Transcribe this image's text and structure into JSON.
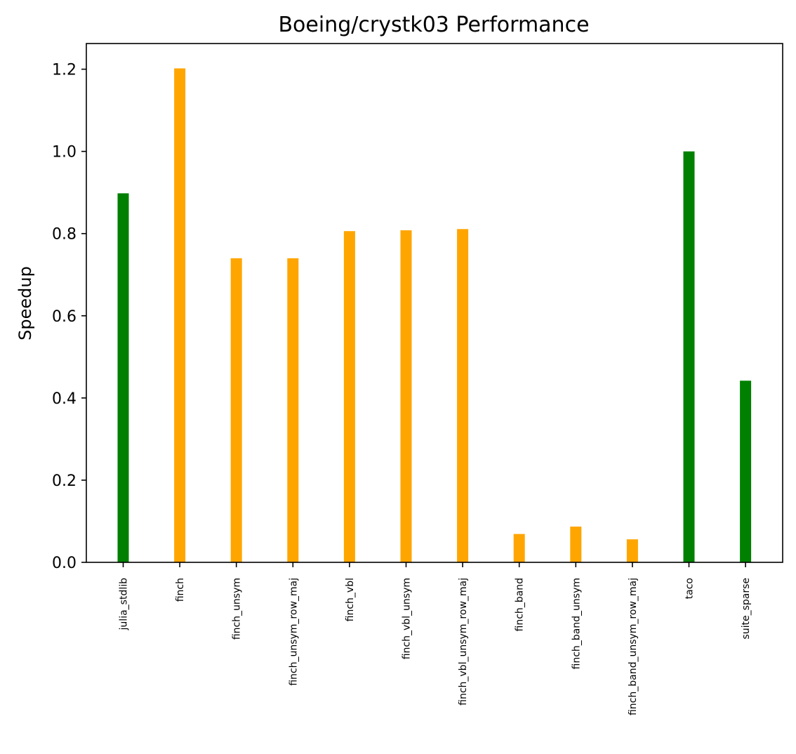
{
  "chart_data": {
    "type": "bar",
    "title": "Boeing/crystk03 Performance",
    "xlabel": "",
    "ylabel": "Speedup",
    "ylim": [
      0,
      1.2625
    ],
    "yticks": [
      "0.0",
      "0.2",
      "0.4",
      "0.6",
      "0.8",
      "1.0",
      "1.2"
    ],
    "categories": [
      "julia_stdlib",
      "finch",
      "finch_unsym",
      "finch_unsym_row_maj",
      "finch_vbl",
      "finch_vbl_unsym",
      "finch_vbl_unsym_row_maj",
      "finch_band",
      "finch_band_unsym",
      "finch_band_unsym_row_maj",
      "taco",
      "suite_sparse"
    ],
    "values": [
      0.898,
      1.202,
      0.74,
      0.74,
      0.806,
      0.808,
      0.811,
      0.069,
      0.087,
      0.056,
      1.0,
      0.442
    ],
    "colors": [
      "#008000",
      "#ffa500",
      "#ffa500",
      "#ffa500",
      "#ffa500",
      "#ffa500",
      "#ffa500",
      "#ffa500",
      "#ffa500",
      "#ffa500",
      "#008000",
      "#008000"
    ],
    "grid": false,
    "legend": "none"
  }
}
